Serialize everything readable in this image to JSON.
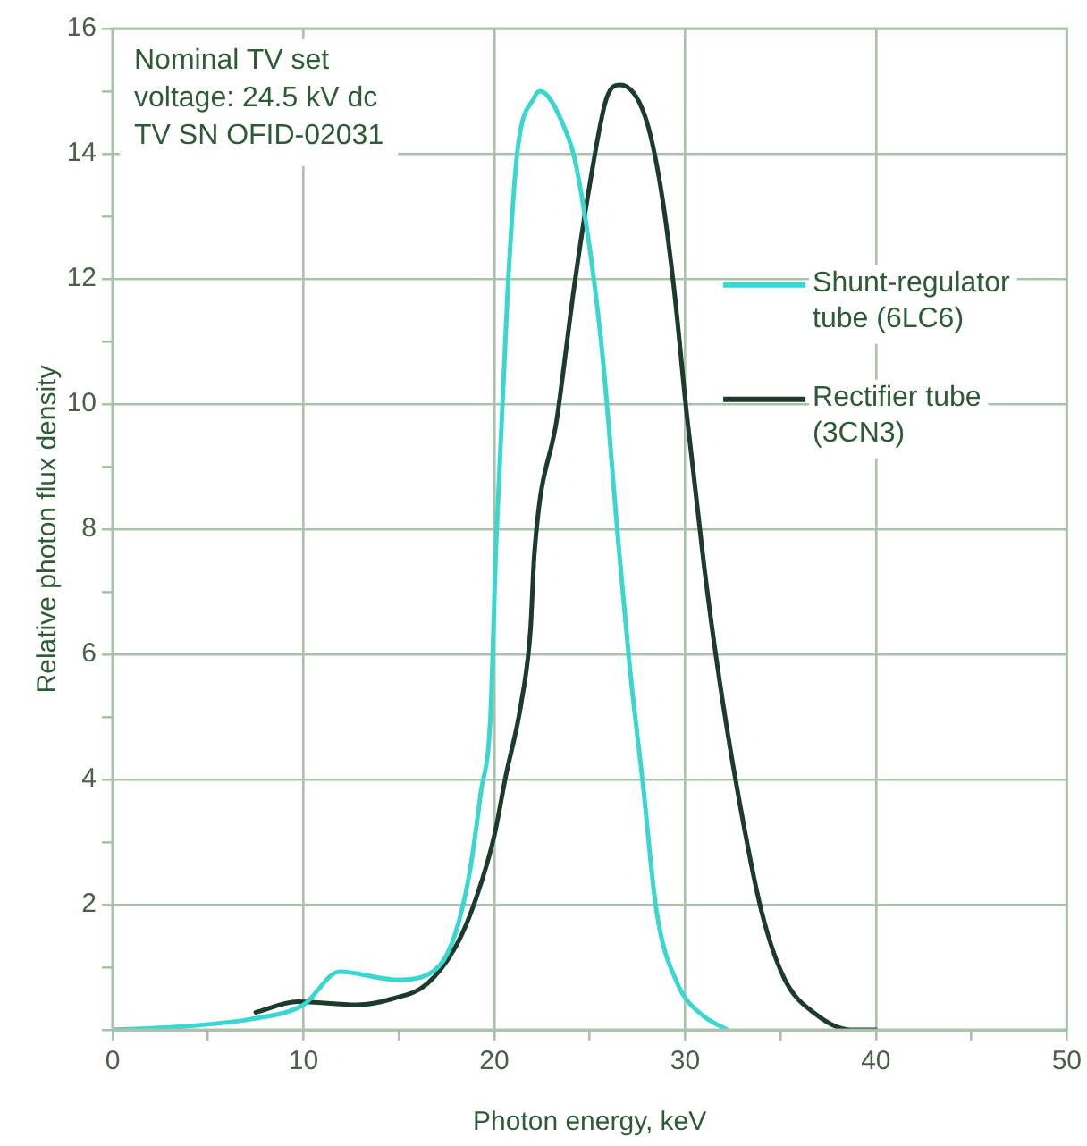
{
  "chart_data": {
    "type": "line",
    "xlabel": "Photon energy, keV",
    "ylabel": "Relative photon flux density",
    "annotations": [
      "Nominal TV set voltage: 24.5 kV dc",
      "TV SN OFID-02031"
    ],
    "xlim": [
      0,
      50
    ],
    "xticks": [
      0,
      {
        "value": 5,
        "label": null
      },
      10,
      {
        "value": 15,
        "label": null
      },
      20,
      {
        "value": 25,
        "label": null
      },
      30,
      {
        "value": 35,
        "label": null
      },
      40,
      {
        "value": 45,
        "label": null
      },
      50
    ],
    "ylim": [
      0,
      16
    ],
    "yticks": [
      {
        "value": 0,
        "label": null
      },
      {
        "value": 1,
        "label": null
      },
      2,
      {
        "value": 3,
        "label": null
      },
      4,
      {
        "value": 5,
        "label": null
      },
      6,
      {
        "value": 7,
        "label": null
      },
      8,
      {
        "value": 9,
        "label": null
      },
      10,
      {
        "value": 11,
        "label": null
      },
      12,
      {
        "value": 13,
        "label": null
      },
      14,
      {
        "value": 15,
        "label": null
      },
      16
    ],
    "grid": true,
    "legend": "right",
    "marker": "none",
    "line_style": "solid",
    "series": [
      {
        "name": "Shunt-regulator tube (6LC6)",
        "color": "#3ad6d0",
        "x": [
          0,
          3.5,
          7.2,
          10,
          11.9,
          14.9,
          16.5,
          17.8,
          18.7,
          19.3,
          19.8,
          20.1,
          20.7,
          21.2,
          22.1,
          22.4,
          23.7,
          24.3,
          25.6,
          26.5,
          27.1,
          27.8,
          28.5,
          29.6,
          30.8,
          32.2
        ],
        "values": [
          0,
          0.05,
          0.17,
          0.4,
          0.93,
          0.8,
          0.88,
          1.4,
          2.5,
          3.8,
          5,
          7.8,
          11.8,
          14,
          14.9,
          15,
          14.4,
          13.8,
          11,
          7.8,
          5.8,
          3.9,
          1.9,
          0.74,
          0.26,
          0
        ]
      },
      {
        "name": "Rectifier tube (3CN3)",
        "color": "#1c3b2c",
        "x": [
          7.5,
          9.7,
          12.8,
          14.7,
          16.5,
          18.1,
          19.1,
          20,
          20.6,
          21.4,
          21.9,
          22.1,
          23.3,
          24.2,
          25,
          25.9,
          26.6,
          27.9,
          28.7,
          29.4,
          30.1,
          31,
          31.7,
          32.7,
          34,
          35.2,
          36.8,
          38.7,
          40
        ],
        "values": [
          0.28,
          0.45,
          0.4,
          0.5,
          0.74,
          1.4,
          2.15,
          3.1,
          4.05,
          5.2,
          6.4,
          7.6,
          9.8,
          11.9,
          13.5,
          14.9,
          15.1,
          14.6,
          13.5,
          11.9,
          9.8,
          7.4,
          5.8,
          3.9,
          1.9,
          0.82,
          0.26,
          0,
          0
        ]
      }
    ]
  }
}
